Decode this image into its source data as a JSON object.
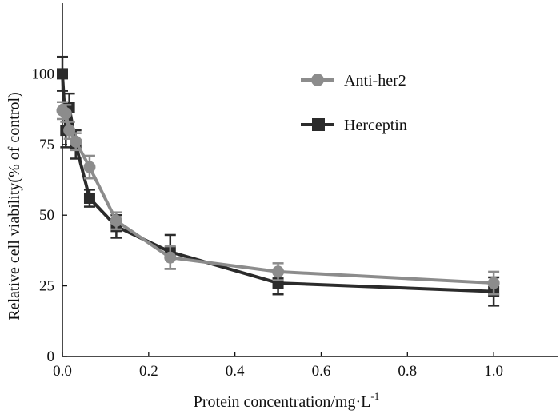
{
  "chart_data": {
    "type": "line",
    "title": "",
    "xlabel": "Protein concentration/mg·L",
    "xlabel_superscript": "-1",
    "ylabel": "Relative cell viability(% of control)",
    "xlim": [
      0,
      1.15
    ],
    "ylim": [
      0,
      125
    ],
    "x_ticks": [
      "0.0",
      "0.2",
      "0.4",
      "0.6",
      "0.8",
      "1.0"
    ],
    "y_ticks": [
      "0",
      "25",
      "50",
      "75",
      "100"
    ],
    "grid": false,
    "legend_position": "top-right",
    "series": [
      {
        "name": "Anti-her2",
        "color": "#8c8c8c",
        "marker": "circle",
        "x": [
          0.0,
          0.008,
          0.016,
          0.031,
          0.063,
          0.125,
          0.25,
          0.5,
          1.0
        ],
        "y": [
          87,
          86,
          80,
          76,
          67,
          48,
          35,
          30,
          26
        ],
        "error": [
          3,
          3,
          3,
          3,
          4,
          3,
          4,
          3,
          4
        ]
      },
      {
        "name": "Herceptin",
        "color": "#2b2b2b",
        "marker": "square",
        "x": [
          0.0,
          0.008,
          0.016,
          0.031,
          0.063,
          0.125,
          0.25,
          0.5,
          1.0
        ],
        "y": [
          100,
          80,
          88,
          75,
          56,
          46,
          37,
          26,
          23
        ],
        "error": [
          6,
          6,
          5,
          5,
          3,
          4,
          6,
          4,
          5
        ]
      }
    ]
  }
}
